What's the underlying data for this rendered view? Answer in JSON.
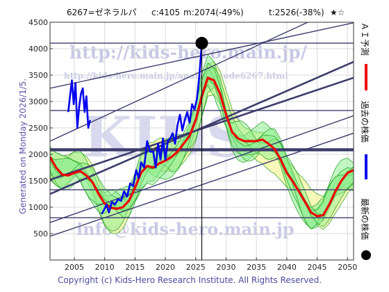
{
  "header": {
    "code_name": "6267=ゼネラルパ",
    "current": "c:4105",
    "median": "m:2074(-49%)",
    "target": "t:2526(-38%)",
    "stars": "★☆"
  },
  "side_label": "Generated on Monday 2026/1/5.",
  "copyright": "Copyright (c) Kids-Hero Research Institute. All Rights Reserved.",
  "watermark": {
    "line1": "http://kids-hero.main.jp/",
    "line2": "http://kids-hero.main.jp/analysis/code6267.html",
    "big": "KIDS",
    "line3": "info@kids-hero.main.jp"
  },
  "legend": {
    "forecast": "ＡＩ予測",
    "past": "過去の株価",
    "latest": "最新の株価"
  },
  "colors": {
    "forecast": "#ee0000",
    "past": "#0000ee",
    "latest": "#000000",
    "band_fill": "#90ee90",
    "band_fill_alt": "#f5f5a0",
    "band_line": "#1a9a1a",
    "channel": "#3c3c6c"
  },
  "chart_data": {
    "type": "line",
    "title": "",
    "xlabel": "",
    "ylabel": "",
    "xlim": [
      2001,
      2051
    ],
    "ylim": [
      0,
      4500
    ],
    "x_ticks": [
      2005,
      2010,
      2015,
      2020,
      2025,
      2030,
      2035,
      2040,
      2045,
      2050
    ],
    "y_ticks": [
      500,
      1000,
      1500,
      2000,
      2500,
      3000,
      3500,
      4000,
      4500
    ],
    "grid": true,
    "horizontal_levels": [
      4105,
      2830,
      2100,
      2074,
      1330,
      800
    ],
    "current_marker": {
      "x": 2026.0,
      "y": 4105
    },
    "trend_channels": [
      {
        "x0": 2001,
        "y0": 1250,
        "x1": 2051,
        "y1": 3750
      },
      {
        "x0": 2001,
        "y0": 1520,
        "x1": 2051,
        "y1": 3450
      },
      {
        "x0": 2001,
        "y0": 450,
        "x1": 2051,
        "y1": 2400
      },
      {
        "x0": 2001,
        "y0": 710,
        "x1": 2051,
        "y1": 2730
      },
      {
        "x0": 2001,
        "y0": 3250,
        "x1": 2051,
        "y1": 4490
      },
      {
        "x0": 2001,
        "y0": 2250,
        "x1": 2051,
        "y1": 4900
      }
    ],
    "series": [
      {
        "name": "ＡＩ予測",
        "x": [
          2001,
          2002,
          2003,
          2004,
          2005,
          2006,
          2007,
          2008,
          2009,
          2010,
          2011,
          2012,
          2013,
          2014,
          2015,
          2016,
          2017,
          2018,
          2019,
          2020,
          2021,
          2022,
          2023,
          2024,
          2025,
          2026,
          2027,
          2028,
          2029,
          2030,
          2031,
          2032,
          2033,
          2034,
          2035,
          2036,
          2037,
          2038,
          2039,
          2040,
          2041,
          2042,
          2043,
          2044,
          2045,
          2046,
          2047,
          2048,
          2049,
          2050,
          2051
        ],
        "y": [
          1950,
          1750,
          1620,
          1600,
          1650,
          1680,
          1600,
          1470,
          1250,
          1070,
          990,
          970,
          1000,
          1120,
          1370,
          1650,
          1780,
          1750,
          1830,
          1880,
          1950,
          2050,
          2200,
          2350,
          2650,
          3100,
          3450,
          3400,
          3150,
          2750,
          2420,
          2300,
          2250,
          2250,
          2250,
          2280,
          2200,
          2100,
          1900,
          1650,
          1480,
          1300,
          1100,
          900,
          830,
          850,
          1050,
          1300,
          1500,
          1650,
          1700
        ]
      },
      {
        "name": "過去の株価",
        "x": [
          2004.0,
          2004.3,
          2004.6,
          2004.9,
          2005.2,
          2005.5,
          2005.8,
          2006.1,
          2006.4,
          2006.7,
          2007.0,
          2007.3,
          2007.6,
          2009.5,
          2009.9,
          2010.3,
          2010.7,
          2011.2,
          2011.7,
          2012.2,
          2012.7,
          2013.2,
          2013.7,
          2014.2,
          2014.7,
          2015.2,
          2015.6,
          2016.0,
          2016.5,
          2017.0,
          2017.5,
          2018.0,
          2018.4,
          2018.8,
          2019.2,
          2019.6,
          2020.0,
          2020.4,
          2020.8,
          2021.2,
          2021.6,
          2022.0,
          2022.4,
          2022.8,
          2023.2,
          2023.6,
          2024.0,
          2024.4,
          2024.8,
          2025.2,
          2025.6,
          2026.0
        ],
        "y": [
          2800,
          3100,
          3400,
          2950,
          3350,
          2500,
          2900,
          3150,
          3250,
          2800,
          3100,
          2500,
          2650,
          870,
          950,
          1050,
          900,
          1100,
          1050,
          1150,
          1120,
          1300,
          1200,
          1450,
          1400,
          1700,
          1550,
          1850,
          1750,
          2250,
          2050,
          2050,
          1750,
          2200,
          1900,
          2300,
          1900,
          2250,
          2300,
          2400,
          2200,
          2550,
          2750,
          2450,
          2650,
          2800,
          2600,
          2950,
          2850,
          3050,
          3500,
          4105
        ]
      }
    ]
  }
}
